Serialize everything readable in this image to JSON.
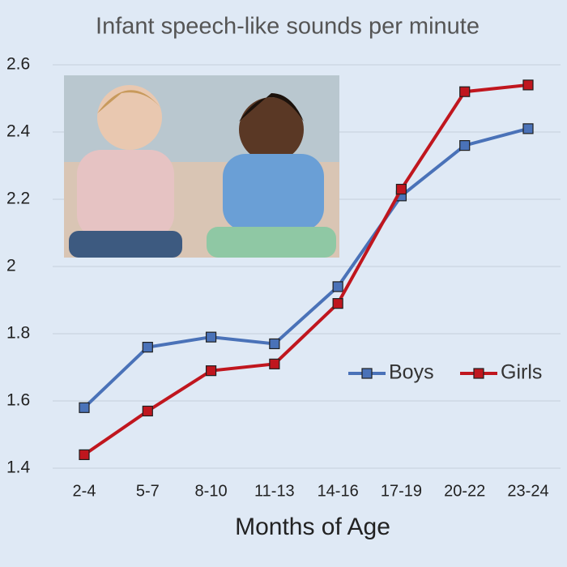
{
  "chart_data": {
    "type": "line",
    "title": "Infant speech-like sounds per minute",
    "x_label": "Months of Age",
    "categories": [
      "2-4",
      "5-7",
      "8-10",
      "11-13",
      "14-16",
      "17-19",
      "20-22",
      "23-24"
    ],
    "series": [
      {
        "name": "Boys",
        "color": "#4a72b8",
        "values": [
          1.58,
          1.76,
          1.79,
          1.77,
          1.94,
          2.21,
          2.36,
          2.41
        ]
      },
      {
        "name": "Girls",
        "color": "#c0161e",
        "values": [
          1.44,
          1.57,
          1.69,
          1.71,
          1.89,
          2.23,
          2.52,
          2.54
        ]
      }
    ],
    "ylim": [
      1.4,
      2.6
    ],
    "yticks": [
      1.4,
      1.6,
      1.8,
      2,
      2.2,
      2.4,
      2.6
    ],
    "grid": true,
    "legend": "right"
  }
}
